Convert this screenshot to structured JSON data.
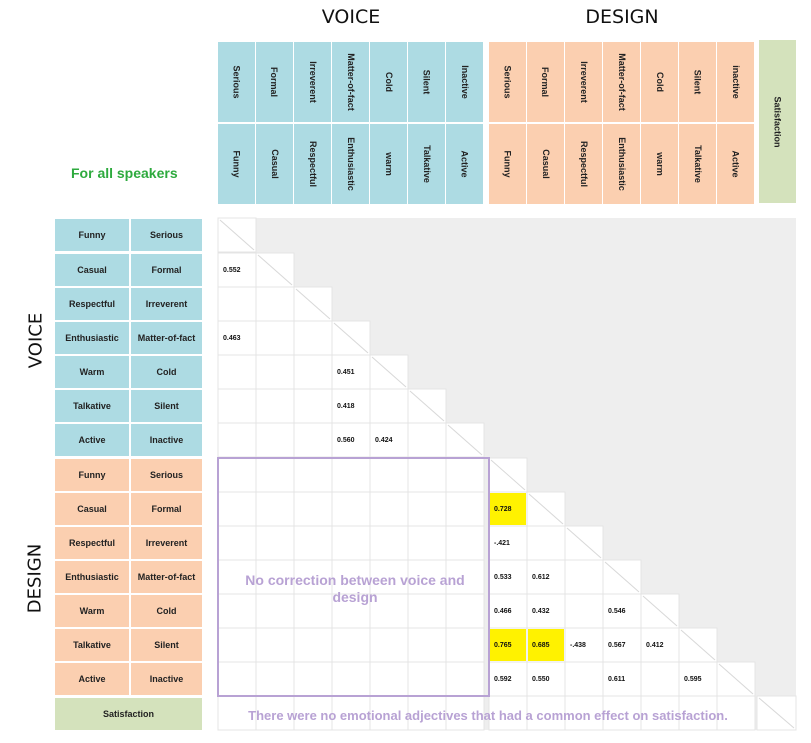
{
  "titles": {
    "voice": "VOICE",
    "design": "DESIGN",
    "for_all": "For all speakers"
  },
  "side_labels": {
    "voice": "VOICE",
    "design": "DESIGN"
  },
  "columns": {
    "voice": [
      {
        "top": "Serious",
        "bottom": "Funny"
      },
      {
        "top": "Formal",
        "bottom": "Casual"
      },
      {
        "top": "Irreverent",
        "bottom": "Respectful"
      },
      {
        "top": "Matter-of-fact",
        "bottom": "Enthusiastic"
      },
      {
        "top": "Cold",
        "bottom": "warm"
      },
      {
        "top": "Silent",
        "bottom": "Talkative"
      },
      {
        "top": "Inactive",
        "bottom": "Active"
      }
    ],
    "design": [
      {
        "top": "Serious",
        "bottom": "Funny"
      },
      {
        "top": "Formal",
        "bottom": "Casual"
      },
      {
        "top": "Irreverent",
        "bottom": "Respectful"
      },
      {
        "top": "Matter-of-fact",
        "bottom": "Enthusiastic"
      },
      {
        "top": "Cold",
        "bottom": "warm"
      },
      {
        "top": "Silent",
        "bottom": "Talkative"
      },
      {
        "top": "inactive",
        "bottom": "Active"
      }
    ],
    "satisfaction": "Satisfaction"
  },
  "rows": {
    "voice": [
      {
        "left": "Funny",
        "right": "Serious"
      },
      {
        "left": "Casual",
        "right": "Formal"
      },
      {
        "left": "Respectful",
        "right": "Irreverent"
      },
      {
        "left": "Enthusiastic",
        "right": "Matter-of-fact"
      },
      {
        "left": "Warm",
        "right": "Cold"
      },
      {
        "left": "Talkative",
        "right": "Silent"
      },
      {
        "left": "Active",
        "right": "Inactive"
      }
    ],
    "design": [
      {
        "left": "Funny",
        "right": "Serious"
      },
      {
        "left": "Casual",
        "right": "Formal"
      },
      {
        "left": "Respectful",
        "right": "Irreverent"
      },
      {
        "left": "Enthusiastic",
        "right": "Matter-of-fact"
      },
      {
        "left": "Warm",
        "right": "Cold"
      },
      {
        "left": "Talkative",
        "right": "Silent"
      },
      {
        "left": "Active",
        "right": "Inactive"
      }
    ],
    "satisfaction": "Satisfaction"
  },
  "notes": {
    "no_correction": "No correction between voice and design",
    "satisfaction": "There were no emotional adjectives that had a common effect on satisfaction."
  },
  "colors": {
    "voice": "#addbe3",
    "design": "#fbcfb0",
    "satisfaction": "#d4e2bc",
    "highlight": "#fff200",
    "note": "#b8a2d4",
    "for_all": "#2eaa3e"
  },
  "chart_data": {
    "type": "table",
    "title": "For all speakers",
    "variables": [
      "Voice Funny-Serious",
      "Voice Casual-Formal",
      "Voice Respectful-Irreverent",
      "Voice Enthusiastic-Matter-of-fact",
      "Voice Warm-Cold",
      "Voice Talkative-Silent",
      "Voice Active-Inactive",
      "Design Funny-Serious",
      "Design Casual-Formal",
      "Design Respectful-Irreverent",
      "Design Enthusiastic-Matter-of-fact",
      "Design Warm-Cold",
      "Design Talkative-Silent",
      "Design Active-Inactive",
      "Satisfaction"
    ],
    "correlations": [
      {
        "row": 1,
        "col": 0,
        "value": "0.552"
      },
      {
        "row": 3,
        "col": 0,
        "value": "0.463"
      },
      {
        "row": 4,
        "col": 3,
        "value": "0.451"
      },
      {
        "row": 5,
        "col": 3,
        "value": "0.418"
      },
      {
        "row": 6,
        "col": 3,
        "value": "0.560"
      },
      {
        "row": 6,
        "col": 4,
        "value": "0.424"
      },
      {
        "row": 8,
        "col": 7,
        "value": "0.728",
        "highlight": true
      },
      {
        "row": 9,
        "col": 7,
        "value": "-.421"
      },
      {
        "row": 10,
        "col": 7,
        "value": "0.533"
      },
      {
        "row": 10,
        "col": 8,
        "value": "0.612"
      },
      {
        "row": 11,
        "col": 7,
        "value": "0.466"
      },
      {
        "row": 11,
        "col": 8,
        "value": "0.432"
      },
      {
        "row": 11,
        "col": 10,
        "value": "0.546"
      },
      {
        "row": 12,
        "col": 7,
        "value": "0.765",
        "highlight": true
      },
      {
        "row": 12,
        "col": 8,
        "value": "0.685",
        "highlight": true
      },
      {
        "row": 12,
        "col": 9,
        "value": "-.438"
      },
      {
        "row": 12,
        "col": 10,
        "value": "0.567"
      },
      {
        "row": 12,
        "col": 11,
        "value": "0.412"
      },
      {
        "row": 13,
        "col": 7,
        "value": "0.592"
      },
      {
        "row": 13,
        "col": 8,
        "value": "0.550"
      },
      {
        "row": 13,
        "col": 10,
        "value": "0.611"
      },
      {
        "row": 13,
        "col": 12,
        "value": "0.595"
      }
    ]
  }
}
